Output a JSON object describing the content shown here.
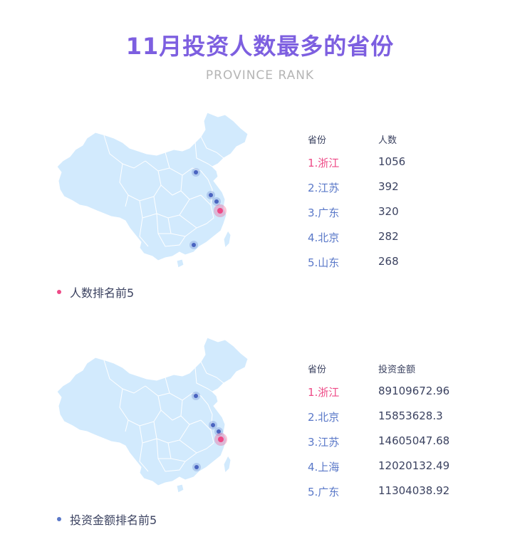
{
  "header": {
    "title": "11月投资人数最多的省份",
    "subtitle": "PROVINCE RANK"
  },
  "colors": {
    "title": "#7d5fe0",
    "map_fill": "#d2eafd",
    "map_border": "#ffffff",
    "marker_highlight": "#ee4a87",
    "marker_normal": "#5a78c8"
  },
  "sections": [
    {
      "legend": "人数排名前5",
      "legend_color": "#ee4a87",
      "columns": [
        "省份",
        "人数"
      ],
      "rows": [
        {
          "province": "1.浙江",
          "value": "1056"
        },
        {
          "province": "2.江苏",
          "value": "392"
        },
        {
          "province": "3.广东",
          "value": "320"
        },
        {
          "province": "4.北京",
          "value": "282"
        },
        {
          "province": "5.山东",
          "value": "268"
        }
      ]
    },
    {
      "legend": "投资金额排名前5",
      "legend_color": "#5a78c8",
      "columns": [
        "省份",
        "投资金额"
      ],
      "rows": [
        {
          "province": "1.浙江",
          "value": "89109672.96"
        },
        {
          "province": "2.北京",
          "value": "15853628.3"
        },
        {
          "province": "3.江苏",
          "value": "14605047.68"
        },
        {
          "province": "4.上海",
          "value": "12020132.49"
        },
        {
          "province": "5.广东",
          "value": "11304038.92"
        }
      ]
    }
  ]
}
